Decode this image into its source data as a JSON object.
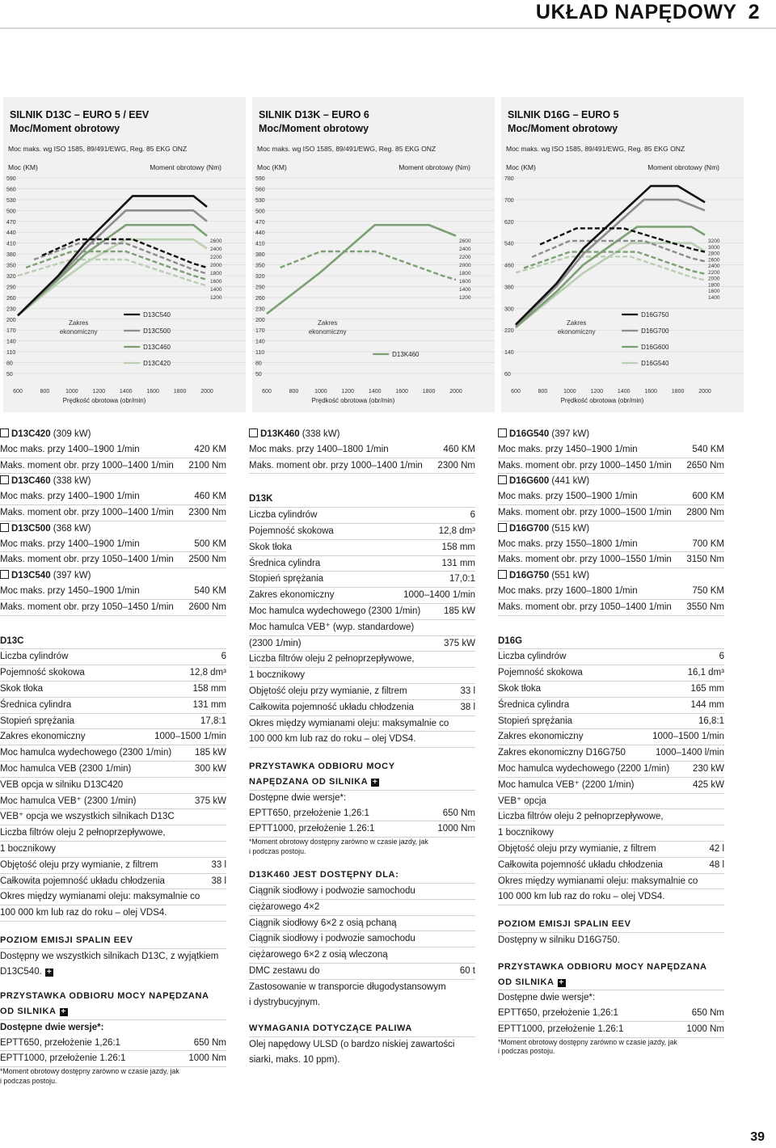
{
  "header": {
    "title": "UKŁAD NAPĘDOWY",
    "chapter": "2"
  },
  "page_number": "39",
  "colors": {
    "s0": "#b9ceb2",
    "s1": "#7d9f74",
    "s2": "#8c8c8c",
    "s3": "#111111"
  },
  "charts": [
    {
      "heading1": "SILNIK D13C – EURO 5 / EEV",
      "heading2": "Moc/Moment obrotowy",
      "norm": "Moc maks. wg ISO 1585, 89/491/EWG, Reg. 85 EKG ONZ",
      "left_label": "Moc (KM)",
      "right_label": "Moment obrotowy (Nm)",
      "zone": [
        "Zakres",
        "ekonomiczny"
      ],
      "xlabel": "Prędkość obrotowa (obr/min)",
      "xticks": [
        "600",
        "800",
        "1000",
        "1200",
        "1400",
        "1600",
        "1800",
        "2000"
      ],
      "yticks": [
        "590",
        "560",
        "530",
        "500",
        "470",
        "440",
        "410",
        "380",
        "350",
        "320",
        "290",
        "260",
        "230",
        "200",
        "170",
        "140",
        "110",
        "80",
        "50"
      ],
      "rticks": [
        "2600",
        "2400",
        "2200",
        "2000",
        "1800",
        "1600",
        "1400",
        "1200"
      ],
      "legend": [
        "D13C540",
        "D13C500",
        "D13C460",
        "D13C420"
      ]
    },
    {
      "heading1": "SILNIK D13K – EURO 6",
      "heading2": "Moc/Moment obrotowy",
      "norm": "Moc maks. wg ISO 1585, 89/491/EWG, Reg. 85 EKG ONZ",
      "left_label": "Moc (KM)",
      "right_label": "Moment obrotowy (Nm)",
      "zone": [
        "Zakres",
        "ekonomiczny"
      ],
      "xlabel": "Prędkość obrotowa (obr/min)",
      "xticks": [
        "600",
        "800",
        "1000",
        "1200",
        "1400",
        "1600",
        "1800",
        "2000"
      ],
      "yticks": [
        "590",
        "560",
        "530",
        "500",
        "470",
        "440",
        "410",
        "380",
        "350",
        "320",
        "290",
        "260",
        "230",
        "200",
        "170",
        "140",
        "110",
        "80",
        "50"
      ],
      "rticks": [
        "2600",
        "2400",
        "2200",
        "2000",
        "1800",
        "1600",
        "1400",
        "1200"
      ],
      "legend": [
        "D13K460"
      ]
    },
    {
      "heading1": "SILNIK D16G – EURO 5",
      "heading2": "Moc/Moment obrotowy",
      "norm": "Moc maks. wg ISO 1585, 89/491/EWG, Reg. 85 EKG ONZ",
      "left_label": "Moc (KM)",
      "right_label": "Moment obrotowy (Nm)",
      "zone": [
        "Zakres",
        "ekonomiczny"
      ],
      "xlabel": "Prędkość obrotowa (obr/min)",
      "xticks": [
        "600",
        "800",
        "1000",
        "1200",
        "1400",
        "1600",
        "1800",
        "2000"
      ],
      "yticks": [
        "780",
        "700",
        "620",
        "540",
        "460",
        "380",
        "300",
        "220",
        "140",
        "60"
      ],
      "rticks": [
        "3200",
        "3000",
        "2800",
        "2600",
        "2400",
        "2200",
        "2000",
        "1800",
        "1600",
        "1400"
      ],
      "legend": [
        "D16G750",
        "D16G700",
        "D16G600",
        "D16G540"
      ]
    }
  ],
  "chart_data": [
    {
      "type": "line",
      "title": "SILNIK D13C – EURO 5 / EEV",
      "xlabel": "Prędkość obrotowa (obr/min)",
      "ylabel": "Moc (KM)",
      "y2label": "Moment obrotowy (Nm)",
      "xlim": [
        600,
        2000
      ],
      "ylim": [
        50,
        590
      ],
      "y2lim": [
        1200,
        2600
      ],
      "grid": true,
      "series": [
        {
          "name": "D13C420",
          "power": {
            "x": [
              600,
              900,
              1100,
              1400,
              1600,
              1900,
              2000
            ],
            "y": [
              210,
              300,
              355,
              420,
              420,
              420,
              395
            ]
          },
          "torque": {
            "x": [
              1000,
              1400,
              1900,
              2000
            ],
            "y": [
              2100,
              2100,
              1550,
              1450
            ]
          }
        },
        {
          "name": "D13C460",
          "power": {
            "x": [
              600,
              900,
              1100,
              1400,
              1600,
              1900,
              2000
            ],
            "y": [
              210,
              310,
              380,
              460,
              460,
              460,
              430
            ]
          },
          "torque": {
            "x": [
              1000,
              1400,
              1900,
              2000
            ],
            "y": [
              2300,
              2300,
              1700,
              1600
            ]
          }
        },
        {
          "name": "D13C500",
          "power": {
            "x": [
              600,
              900,
              1100,
              1400,
              1600,
              1900,
              2000
            ],
            "y": [
              210,
              315,
              395,
              500,
              500,
              500,
              470
            ]
          },
          "torque": {
            "x": [
              1050,
              1400,
              1900,
              2000
            ],
            "y": [
              2500,
              2500,
              1850,
              1750
            ]
          }
        },
        {
          "name": "D13C540",
          "power": {
            "x": [
              600,
              900,
              1100,
              1450,
              1650,
              1900,
              2000
            ],
            "y": [
              210,
              320,
              410,
              540,
              540,
              540,
              510
            ]
          },
          "torque": {
            "x": [
              1050,
              1450,
              1900,
              2000
            ],
            "y": [
              2600,
              2600,
              2000,
              1900
            ]
          }
        }
      ]
    },
    {
      "type": "line",
      "title": "SILNIK D13K – EURO 6",
      "xlabel": "Prędkość obrotowa (obr/min)",
      "ylabel": "Moc (KM)",
      "y2label": "Moment obrotowy (Nm)",
      "xlim": [
        600,
        2000
      ],
      "ylim": [
        50,
        590
      ],
      "y2lim": [
        1200,
        2600
      ],
      "grid": true,
      "series": [
        {
          "name": "D13K460",
          "power": {
            "x": [
              600,
              1000,
              1400,
              1800,
              2000
            ],
            "y": [
              215,
              330,
              460,
              460,
              430
            ]
          },
          "torque": {
            "x": [
              1000,
              1400,
              1900,
              2000
            ],
            "y": [
              2300,
              2300,
              1700,
              1600
            ]
          }
        }
      ]
    },
    {
      "type": "line",
      "title": "SILNIK D16G – EURO 5",
      "xlabel": "Prędkość obrotowa (obr/min)",
      "ylabel": "Moc (KM)",
      "y2label": "Moment obrotowy (Nm)",
      "xlim": [
        600,
        2000
      ],
      "ylim": [
        60,
        780
      ],
      "y2lim": [
        1400,
        3200
      ],
      "grid": true,
      "series": [
        {
          "name": "D16G540",
          "power": {
            "x": [
              600,
              900,
              1100,
              1450,
              1650,
              1900,
              2000
            ],
            "y": [
              230,
              350,
              430,
              540,
              540,
              540,
              510
            ]
          },
          "torque": {
            "x": [
              1000,
              1450,
              1900,
              2000
            ],
            "y": [
              2650,
              2650,
              2000,
              1900
            ]
          }
        },
        {
          "name": "D16G600",
          "power": {
            "x": [
              600,
              900,
              1100,
              1500,
              1700,
              1900,
              2000
            ],
            "y": [
              230,
              360,
              460,
              600,
              600,
              600,
              570
            ]
          },
          "torque": {
            "x": [
              1000,
              1500,
              1900,
              2000
            ],
            "y": [
              2800,
              2800,
              2200,
              2100
            ]
          }
        },
        {
          "name": "D16G700",
          "power": {
            "x": [
              600,
              900,
              1100,
              1550,
              1700,
              1800,
              2000
            ],
            "y": [
              235,
              380,
              500,
              700,
              700,
              700,
              660
            ]
          },
          "torque": {
            "x": [
              1000,
              1550,
              1900,
              2000
            ],
            "y": [
              3150,
              3150,
              2600,
              2500
            ]
          }
        },
        {
          "name": "D16G750",
          "power": {
            "x": [
              600,
              900,
              1100,
              1600,
              1700,
              1800,
              2000
            ],
            "y": [
              240,
              390,
              520,
              750,
              750,
              750,
              690
            ]
          },
          "torque": {
            "x": [
              1050,
              1400,
              1900,
              2000
            ],
            "y": [
              3550,
              3550,
              2900,
              2800
            ]
          }
        }
      ]
    }
  ],
  "col1": {
    "models": [
      {
        "name": "D13C420",
        "kw": " (309 kW)",
        "power_label": "Moc maks. przy 1400–1900 1/min",
        "power_value": "420 KM",
        "torque_label": "Maks. moment obr. przy 1000–1400 1/min",
        "torque_value": "2100 Nm"
      },
      {
        "name": "D13C460",
        "kw": " (338 kW)",
        "power_label": "Moc maks. przy 1400–1900 1/min",
        "power_value": "460 KM",
        "torque_label": "Maks. moment obr. przy 1000–1400 1/min",
        "torque_value": "2300 Nm"
      },
      {
        "name": "D13C500",
        "kw": " (368 kW)",
        "power_label": "Moc maks. przy 1400–1900 1/min",
        "power_value": "500 KM",
        "torque_label": "Maks. moment obr. przy 1050–1400 1/min",
        "torque_value": "2500 Nm"
      },
      {
        "name": "D13C540",
        "kw": " (397 kW)",
        "power_label": "Moc maks. przy 1450–1900 1/min",
        "power_value": "540 KM",
        "torque_label": "Maks. moment obr. przy 1050–1450 1/min",
        "torque_value": "2600 Nm"
      }
    ],
    "spec_title": "D13C",
    "specs": [
      [
        "Liczba cylindrów",
        "6"
      ],
      [
        "Pojemność skokowa",
        "12,8 dm³"
      ],
      [
        "Skok tłoka",
        "158 mm"
      ],
      [
        "Średnica cylindra",
        "131 mm"
      ],
      [
        "Stopień sprężania",
        "17,8:1"
      ],
      [
        "Zakres ekonomiczny",
        "1000–1500 1/min"
      ],
      [
        "Moc hamulca wydechowego (2300 1/min)",
        "185 kW"
      ],
      [
        "Moc hamulca VEB (2300 1/min)",
        "300 kW"
      ],
      [
        "VEB opcja w silniku D13C420",
        ""
      ],
      [
        "Moc hamulca VEB⁺ (2300 1/min)",
        "375 kW"
      ],
      [
        "VEB⁺ opcja we wszystkich silnikach D13C",
        ""
      ],
      [
        "Liczba filtrów oleju 2 pełnoprzepływowe,",
        ""
      ],
      [
        "1 bocznikowy",
        ""
      ],
      [
        "Objętość oleju przy wymianie, z filtrem",
        "33 l"
      ],
      [
        "Całkowita pojemność układu chłodzenia",
        "38 l"
      ],
      [
        "Okres między wymianami oleju: maksymalnie co",
        ""
      ],
      [
        "100 000 km lub raz do roku – olej VDS4.",
        ""
      ]
    ],
    "emission_title": "POZIOM EMISJI SPALIN EEV",
    "emission_text1": "Dostępny we wszystkich silnikach D13C, z wyjątkiem",
    "emission_text2": "D13C540.",
    "pto_title1": "PRZYSTAWKA ODBIORU MOCY NAPĘDZANA",
    "pto_title2": "OD SILNIKA",
    "pto_sub": "Dostępne dwie wersje*:",
    "pto_rows": [
      [
        "EPTT650, przełożenie 1,26:1",
        "650 Nm"
      ],
      [
        "EPTT1000, przełożenie 1.26:1",
        "1000 Nm"
      ]
    ],
    "pto_note1": "*Moment obrotowy dostępny zarówno w czasie jazdy, jak",
    "pto_note2": "i podczas postoju."
  },
  "col2": {
    "model": {
      "name": "D13K460",
      "kw": " (338 kW)",
      "power_label": "Moc maks. przy 1400–1800 1/min",
      "power_value": "460 KM",
      "torque_label": "Maks. moment obr. przy 1000–1400 1/min",
      "torque_value": "2300 Nm"
    },
    "spec_title": "D13K",
    "specs": [
      [
        "Liczba cylindrów",
        "6"
      ],
      [
        "Pojemność skokowa",
        "12,8 dm³"
      ],
      [
        "Skok tłoka",
        "158 mm"
      ],
      [
        "Średnica cylindra",
        "131 mm"
      ],
      [
        "Stopień sprężania",
        "17,0:1"
      ],
      [
        "Zakres ekonomiczny",
        "1000–1400 1/min"
      ],
      [
        "Moc hamulca wydechowego (2300 1/min)",
        "185 kW"
      ],
      [
        "Moc hamulca VEB⁺ (wyp. standardowe)",
        ""
      ],
      [
        "(2300 1/min)",
        "375 kW"
      ],
      [
        "Liczba filtrów oleju 2 pełnoprzepływowe,",
        ""
      ],
      [
        "1 bocznikowy",
        ""
      ],
      [
        "Objętość oleju przy wymianie, z filtrem",
        "33 l"
      ],
      [
        "Całkowita pojemność układu chłodzenia",
        "38 l"
      ],
      [
        "Okres między wymianami oleju: maksymalnie co",
        ""
      ],
      [
        "100 000 km lub raz do roku – olej VDS4.",
        ""
      ]
    ],
    "pto_title1": "PRZYSTAWKA ODBIORU MOCY",
    "pto_title2": "NAPĘDZANA OD SILNIKA",
    "pto_sub": "Dostępne dwie wersje*:",
    "pto_rows": [
      [
        "EPTT650, przełożenie 1,26:1",
        "650 Nm"
      ],
      [
        "EPTT1000, przełożenie 1.26:1",
        "1000 Nm"
      ]
    ],
    "pto_note1": "*Moment obrotowy dostępny zarówno w czasie jazdy, jak",
    "pto_note2": "i podczas postoju.",
    "avail_title": "D13K460 JEST DOSTĘPNY DLA:",
    "avail_lines": [
      "Ciągnik siodłowy i podwozie samochodu",
      "ciężarowego 4×2",
      "Ciągnik siodłowy 6×2 z osią pchaną",
      "Ciągnik siodłowy i podwozie samochodu",
      "ciężarowego 6×2 z osią wleczoną"
    ],
    "dmc_label": "DMC zestawu do",
    "dmc_value": "60 t",
    "use_lines": [
      "Zastosowanie w transporcie długodystansowym",
      "i dystrybucyjnym."
    ],
    "fuel_title": "WYMAGANIA DOTYCZĄCE PALIWA",
    "fuel_lines": [
      "Olej napędowy ULSD (o bardzo niskiej zawartości",
      "siarki, maks. 10 ppm)."
    ]
  },
  "col3": {
    "models": [
      {
        "name": "D16G540",
        "kw": " (397 kW)",
        "power_label": "Moc maks. przy 1450–1900 1/min",
        "power_value": "540 KM",
        "torque_label": "Maks. moment obr. przy 1000–1450 1/min",
        "torque_value": "2650 Nm"
      },
      {
        "name": "D16G600",
        "kw": " (441 kW)",
        "power_label": "Moc maks. przy 1500–1900 1/min",
        "power_value": "600 KM",
        "torque_label": "Maks. moment obr. przy 1000–1500 1/min",
        "torque_value": "2800 Nm"
      },
      {
        "name": "D16G700",
        "kw": " (515 kW)",
        "power_label": "Moc maks. przy 1550–1800 1/min",
        "power_value": "700 KM",
        "torque_label": "Maks. moment obr. przy 1000–1550 1/min",
        "torque_value": "3150 Nm"
      },
      {
        "name": "D16G750",
        "kw": " (551 kW)",
        "power_label": "Moc maks. przy 1600–1800 1/min",
        "power_value": "750 KM",
        "torque_label": "Maks. moment obr. przy 1050–1400 1/min",
        "torque_value": "3550 Nm"
      }
    ],
    "spec_title": "D16G",
    "specs": [
      [
        "Liczba cylindrów",
        "6"
      ],
      [
        "Pojemność skokowa",
        "16,1 dm³"
      ],
      [
        "Skok tłoka",
        "165 mm"
      ],
      [
        "Średnica cylindra",
        "144 mm"
      ],
      [
        "Stopień sprężania",
        "16,8:1"
      ],
      [
        "Zakres ekonomiczny",
        "1000–1500 1/min"
      ],
      [
        "Zakres ekonomiczny D16G750",
        "1000–1400 l/min"
      ],
      [
        "Moc hamulca wydechowego (2200 1/min)",
        "230 kW"
      ],
      [
        "Moc hamulca VEB⁺ (2200 1/min)",
        "425 kW"
      ],
      [
        "VEB⁺ opcja",
        ""
      ],
      [
        "Liczba filtrów oleju 2 pełnoprzepływowe,",
        ""
      ],
      [
        "1 bocznikowy",
        ""
      ],
      [
        "Objętość oleju przy wymianie, z filtrem",
        "42 l"
      ],
      [
        "Całkowita pojemność układu chłodzenia",
        "48 l"
      ],
      [
        "Okres między wymianami oleju: maksymalnie co",
        ""
      ],
      [
        "100 000 km lub raz do roku – olej VDS4.",
        ""
      ]
    ],
    "emission_title": "POZIOM EMISJI SPALIN EEV",
    "emission_text": "Dostępny w silniku D16G750.",
    "pto_title1": "PRZYSTAWKA ODBIORU MOCY NAPĘDZANA",
    "pto_title2": "OD SILNIKA",
    "pto_sub": "Dostępne dwie wersje*:",
    "pto_rows": [
      [
        "EPTT650, przełożenie 1,26:1",
        "650 Nm"
      ],
      [
        "EPTT1000, przełożenie 1.26:1",
        "1000 Nm"
      ]
    ],
    "pto_note1": "*Moment obrotowy dostępny zarówno w czasie jazdy, jak",
    "pto_note2": "i podczas postoju."
  }
}
